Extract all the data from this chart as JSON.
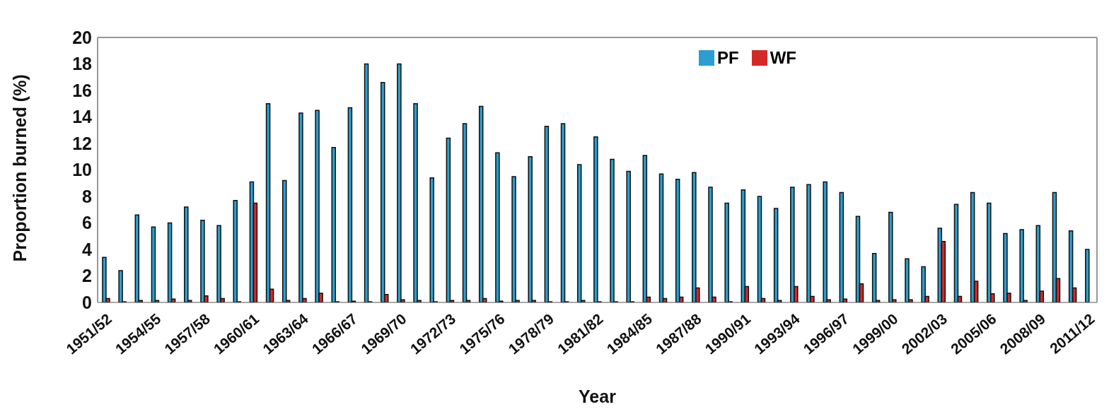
{
  "chart_data": {
    "type": "bar",
    "xlabel": "Year",
    "ylabel": "Proportion burned (%)",
    "categories": [
      "1951/52",
      null,
      null,
      "1954/55",
      null,
      null,
      "1957/58",
      null,
      null,
      "1960/61",
      null,
      null,
      "1963/64",
      null,
      null,
      "1966/67",
      null,
      null,
      "1969/70",
      null,
      null,
      "1972/73",
      null,
      null,
      "1975/76",
      null,
      null,
      "1978/79",
      null,
      null,
      "1981/82",
      null,
      null,
      "1984/85",
      null,
      null,
      "1987/88",
      null,
      null,
      "1990/91",
      null,
      null,
      "1993/94",
      null,
      null,
      "1996/97",
      null,
      null,
      "1999/00",
      null,
      null,
      "2002/03",
      null,
      null,
      "2005/06",
      null,
      null,
      "2008/09",
      null,
      null,
      "2011/12"
    ],
    "series": [
      {
        "name": "PF",
        "color": "#2a9fd0",
        "values": [
          3.4,
          2.4,
          6.6,
          5.7,
          6.0,
          7.2,
          6.2,
          5.8,
          7.7,
          9.1,
          15.0,
          9.2,
          14.3,
          14.5,
          11.7,
          14.7,
          18.0,
          16.6,
          18.0,
          15.0,
          9.4,
          12.4,
          13.5,
          14.8,
          11.3,
          9.5,
          11.0,
          13.3,
          13.5,
          10.4,
          12.5,
          10.8,
          9.9,
          11.1,
          9.7,
          9.3,
          9.8,
          8.7,
          7.5,
          8.5,
          8.0,
          7.1,
          8.7,
          8.9,
          9.1,
          8.3,
          6.5,
          3.7,
          6.8,
          3.3,
          2.7,
          5.6,
          7.4,
          8.3,
          7.5,
          5.2,
          5.5,
          5.8,
          8.3,
          5.4,
          4.0
        ]
      },
      {
        "name": "WF",
        "color": "#d42a27",
        "values": [
          0.3,
          0.05,
          0.15,
          0.15,
          0.25,
          0.15,
          0.5,
          0.3,
          0.05,
          7.5,
          1.0,
          0.15,
          0.3,
          0.7,
          0.05,
          0.1,
          0.05,
          0.6,
          0.2,
          0.15,
          0.05,
          0.15,
          0.15,
          0.3,
          0.1,
          0.15,
          0.15,
          0.05,
          0.05,
          0.15,
          0.05,
          0.05,
          0.05,
          0.4,
          0.3,
          0.4,
          1.1,
          0.4,
          0.05,
          1.2,
          0.3,
          0.15,
          1.2,
          0.45,
          0.2,
          0.25,
          1.4,
          0.15,
          0.2,
          0.2,
          0.45,
          4.6,
          0.45,
          1.6,
          0.65,
          0.7,
          0.15,
          0.85,
          1.8,
          1.1,
          null
        ]
      }
    ],
    "ylim": [
      0,
      20
    ],
    "yticks": [
      0,
      2,
      4,
      6,
      8,
      10,
      12,
      14,
      16,
      18,
      20
    ],
    "legend": "top"
  }
}
